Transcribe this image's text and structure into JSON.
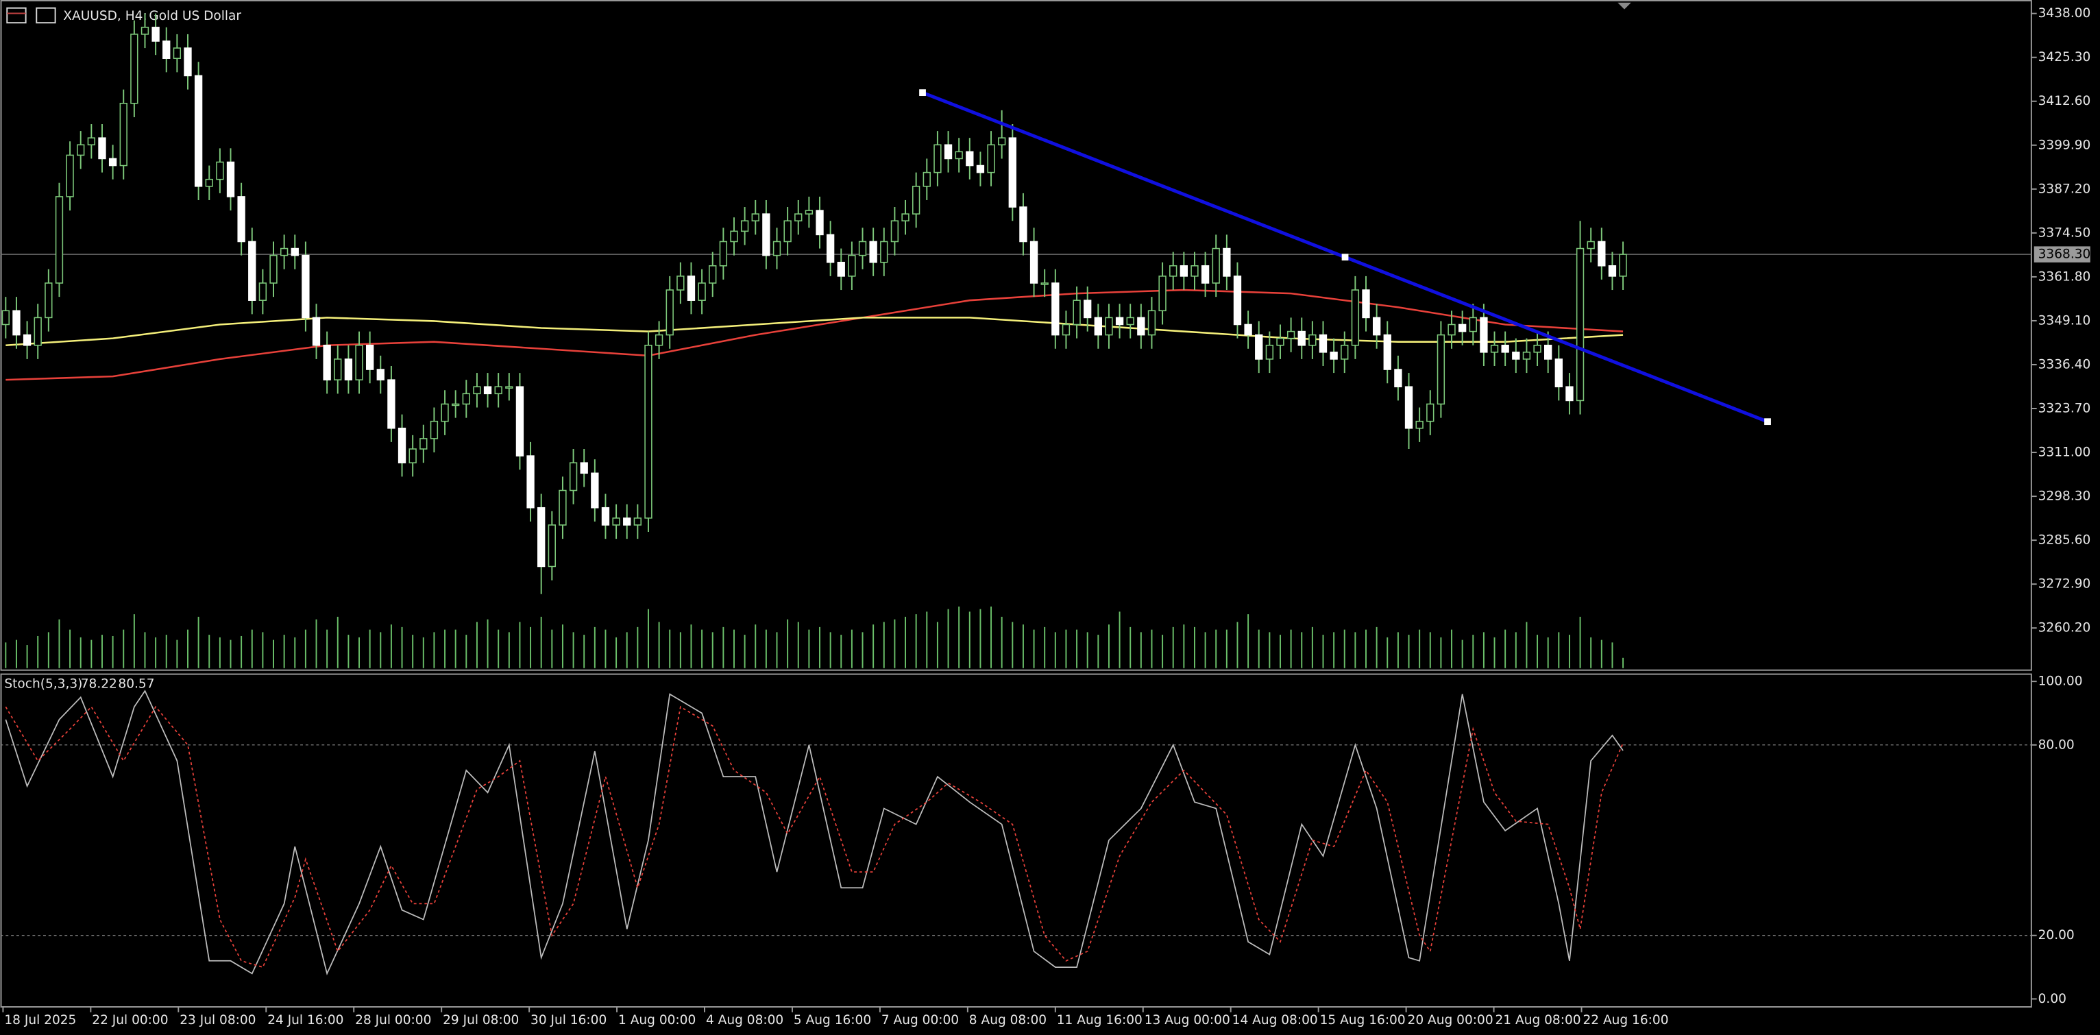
{
  "chart_data": {
    "type": "candlestick",
    "symbol": "XAUUSD, H4:",
    "title": "Gold US Dollar",
    "bull_color": "#000000",
    "bear_color": "#ffffff",
    "wick_color": "#7dc87a",
    "volume_color": "#6abf69",
    "ylim": [
      3248.2,
      3441.9
    ],
    "yticks": [
      {
        "value": 3438.0,
        "label": "3438.00"
      },
      {
        "value": 3425.3,
        "label": "3425.30"
      },
      {
        "value": 3412.6,
        "label": "3412.60"
      },
      {
        "value": 3399.9,
        "label": "3399.90"
      },
      {
        "value": 3387.2,
        "label": "3387.20"
      },
      {
        "value": 3374.5,
        "label": "3374.50"
      },
      {
        "value": 3361.8,
        "label": "3361.80"
      },
      {
        "value": 3349.1,
        "label": "3349.10"
      },
      {
        "value": 3336.4,
        "label": "3336.40"
      },
      {
        "value": 3323.7,
        "label": "3323.70"
      },
      {
        "value": 3311.0,
        "label": "3311.00"
      },
      {
        "value": 3298.3,
        "label": "3298.30"
      },
      {
        "value": 3285.6,
        "label": "3285.60"
      },
      {
        "value": 3272.9,
        "label": "3272.90"
      },
      {
        "value": 3260.2,
        "label": "3260.20"
      }
    ],
    "last_price_label": "3368.30",
    "x_labels": [
      "18 Jul 2025",
      "22 Jul 00:00",
      "23 Jul 08:00",
      "24 Jul 16:00",
      "28 Jul 00:00",
      "29 Jul 08:00",
      "30 Jul 16:00",
      "1 Aug 00:00",
      "4 Aug 08:00",
      "5 Aug 16:00",
      "7 Aug 00:00",
      "8 Aug 08:00",
      "11 Aug 16:00",
      "13 Aug 00:00",
      "14 Aug 08:00",
      "15 Aug 16:00",
      "20 Aug 00:00",
      "21 Aug 08:00",
      "22 Aug 16:00"
    ],
    "candles": {
      "open": [
        3348,
        3352,
        3345,
        3342,
        3350,
        3360,
        3385,
        3397,
        3400,
        3402,
        3396,
        3394,
        3412,
        3432,
        3434,
        3430,
        3425,
        3428,
        3420,
        3388,
        3390,
        3395,
        3385,
        3372,
        3355,
        3360,
        3368,
        3370,
        3368,
        3350,
        3342,
        3332,
        3338,
        3332,
        3342,
        3335,
        3332,
        3318,
        3308,
        3312,
        3315,
        3320,
        3325,
        3325,
        3328,
        3330,
        3328,
        3330,
        3330,
        3310,
        3295,
        3278,
        3290,
        3300,
        3308,
        3305,
        3295,
        3290,
        3292,
        3290,
        3292,
        3342,
        3345,
        3358,
        3362,
        3355,
        3360,
        3365,
        3372,
        3375,
        3378,
        3380,
        3368,
        3372,
        3378,
        3380,
        3381,
        3374,
        3366,
        3362,
        3368,
        3372,
        3366,
        3372,
        3378,
        3380,
        3388,
        3392,
        3400,
        3396,
        3398,
        3394,
        3392,
        3400,
        3402,
        3382,
        3372,
        3360,
        3360,
        3345,
        3348,
        3355,
        3350,
        3345,
        3350,
        3348,
        3350,
        3345,
        3352,
        3362,
        3365,
        3362,
        3365,
        3360,
        3370,
        3362,
        3348,
        3345,
        3338,
        3342,
        3344,
        3346,
        3342,
        3345,
        3340,
        3338,
        3342,
        3358,
        3350,
        3345,
        3335,
        3330,
        3318,
        3320,
        3325,
        3345,
        3348,
        3346,
        3350,
        3340,
        3342,
        3340,
        3338,
        3340,
        3342,
        3338,
        3330,
        3326,
        3370,
        3372,
        3365,
        3362
      ],
      "high": [
        3356,
        3356,
        3349,
        3354,
        3364,
        3389,
        3401,
        3404,
        3406,
        3406,
        3400,
        3416,
        3436,
        3438,
        3438,
        3434,
        3432,
        3432,
        3424,
        3394,
        3399,
        3399,
        3389,
        3376,
        3364,
        3372,
        3374,
        3374,
        3372,
        3354,
        3346,
        3342,
        3342,
        3346,
        3346,
        3339,
        3336,
        3322,
        3316,
        3319,
        3324,
        3329,
        3329,
        3332,
        3334,
        3334,
        3334,
        3334,
        3334,
        3314,
        3299,
        3294,
        3304,
        3312,
        3312,
        3309,
        3299,
        3296,
        3296,
        3296,
        3346,
        3349,
        3362,
        3366,
        3366,
        3364,
        3369,
        3376,
        3379,
        3382,
        3384,
        3384,
        3376,
        3382,
        3384,
        3385,
        3385,
        3378,
        3370,
        3372,
        3376,
        3376,
        3376,
        3382,
        3384,
        3392,
        3396,
        3404,
        3404,
        3402,
        3402,
        3398,
        3404,
        3410,
        3406,
        3386,
        3376,
        3364,
        3364,
        3352,
        3359,
        3359,
        3354,
        3354,
        3354,
        3354,
        3354,
        3356,
        3366,
        3369,
        3369,
        3369,
        3369,
        3374,
        3374,
        3366,
        3352,
        3349,
        3346,
        3348,
        3350,
        3350,
        3349,
        3349,
        3344,
        3346,
        3362,
        3362,
        3354,
        3349,
        3339,
        3334,
        3324,
        3329,
        3349,
        3352,
        3352,
        3354,
        3354,
        3346,
        3346,
        3344,
        3344,
        3346,
        3346,
        3342,
        3334,
        3378,
        3376,
        3376,
        3369,
        3372
      ],
      "low": [
        3344,
        3341,
        3338,
        3338,
        3346,
        3356,
        3381,
        3393,
        3396,
        3392,
        3390,
        3390,
        3408,
        3428,
        3426,
        3421,
        3421,
        3416,
        3384,
        3384,
        3386,
        3381,
        3368,
        3351,
        3351,
        3356,
        3364,
        3364,
        3346,
        3338,
        3328,
        3328,
        3328,
        3328,
        3331,
        3328,
        3314,
        3304,
        3304,
        3308,
        3311,
        3316,
        3321,
        3321,
        3324,
        3324,
        3324,
        3326,
        3306,
        3291,
        3270,
        3274,
        3286,
        3296,
        3301,
        3291,
        3286,
        3286,
        3286,
        3286,
        3288,
        3338,
        3341,
        3354,
        3351,
        3351,
        3356,
        3361,
        3368,
        3371,
        3374,
        3364,
        3364,
        3368,
        3374,
        3376,
        3370,
        3362,
        3358,
        3358,
        3364,
        3362,
        3362,
        3368,
        3374,
        3376,
        3384,
        3388,
        3392,
        3392,
        3390,
        3388,
        3388,
        3396,
        3378,
        3368,
        3356,
        3356,
        3341,
        3341,
        3344,
        3346,
        3341,
        3341,
        3344,
        3344,
        3341,
        3341,
        3348,
        3358,
        3358,
        3358,
        3356,
        3356,
        3358,
        3344,
        3341,
        3334,
        3334,
        3338,
        3340,
        3338,
        3338,
        3336,
        3334,
        3334,
        3338,
        3346,
        3341,
        3331,
        3326,
        3312,
        3314,
        3316,
        3321,
        3341,
        3342,
        3342,
        3336,
        3336,
        3336,
        3334,
        3334,
        3336,
        3334,
        3326,
        3322,
        3322,
        3366,
        3361,
        3358,
        3358
      ],
      "close": [
        3352,
        3345,
        3342,
        3350,
        3360,
        3385,
        3397,
        3400,
        3402,
        3396,
        3394,
        3412,
        3432,
        3434,
        3430,
        3425,
        3428,
        3420,
        3388,
        3390,
        3395,
        3385,
        3372,
        3355,
        3360,
        3368,
        3370,
        3368,
        3350,
        3342,
        3332,
        3338,
        3332,
        3342,
        3335,
        3332,
        3318,
        3308,
        3312,
        3315,
        3320,
        3325,
        3325,
        3328,
        3330,
        3328,
        3330,
        3330,
        3310,
        3295,
        3278,
        3290,
        3300,
        3308,
        3305,
        3295,
        3290,
        3292,
        3290,
        3292,
        3342,
        3345,
        3358,
        3362,
        3355,
        3360,
        3365,
        3372,
        3375,
        3378,
        3380,
        3368,
        3372,
        3378,
        3380,
        3381,
        3374,
        3366,
        3362,
        3368,
        3372,
        3366,
        3372,
        3378,
        3380,
        3388,
        3392,
        3400,
        3396,
        3398,
        3394,
        3392,
        3400,
        3402,
        3382,
        3372,
        3360,
        3360,
        3345,
        3348,
        3355,
        3350,
        3345,
        3350,
        3348,
        3350,
        3345,
        3352,
        3362,
        3365,
        3362,
        3365,
        3360,
        3370,
        3362,
        3348,
        3345,
        3338,
        3342,
        3344,
        3346,
        3342,
        3345,
        3340,
        3338,
        3342,
        3358,
        3350,
        3345,
        3335,
        3330,
        3318,
        3320,
        3325,
        3345,
        3348,
        3346,
        3350,
        3340,
        3342,
        3340,
        3338,
        3340,
        3342,
        3338,
        3330,
        3326,
        3370,
        3372,
        3365,
        3362,
        3368.3
      ]
    },
    "volume": [
      20,
      22,
      18,
      25,
      28,
      38,
      30,
      24,
      22,
      26,
      25,
      30,
      42,
      28,
      24,
      26,
      22,
      30,
      40,
      26,
      24,
      22,
      25,
      30,
      28,
      22,
      26,
      24,
      30,
      38,
      30,
      40,
      26,
      24,
      30,
      28,
      34,
      32,
      26,
      24,
      28,
      30,
      30,
      26,
      36,
      38,
      30,
      28,
      36,
      32,
      40,
      30,
      34,
      28,
      26,
      32,
      30,
      24,
      28,
      32,
      46,
      36,
      30,
      28,
      34,
      30,
      28,
      32,
      30,
      26,
      34,
      30,
      28,
      38,
      36,
      30,
      32,
      28,
      26,
      30,
      28,
      34,
      36,
      38,
      40,
      42,
      44,
      36,
      46,
      48,
      44,
      46,
      48,
      40,
      36,
      34,
      30,
      32,
      28,
      30,
      30,
      28,
      26,
      34,
      44,
      32,
      28,
      30,
      26,
      32,
      34,
      32,
      28,
      30,
      30,
      36,
      42,
      30,
      28,
      26,
      30,
      28,
      32,
      26,
      28,
      30,
      28,
      30,
      32,
      24,
      28,
      26,
      30,
      28,
      24,
      30,
      22,
      26,
      28,
      24,
      30,
      28,
      36,
      26,
      24,
      28,
      26,
      40,
      24,
      22,
      20,
      8
    ],
    "ma": [
      {
        "color": "#e8413a",
        "x": [
          0,
          10,
          20,
          30,
          40,
          50,
          60,
          70,
          80,
          90,
          100,
          110,
          120,
          130,
          140,
          151
        ],
        "values": [
          3332,
          3333,
          3338,
          3342,
          3343,
          3341,
          3339,
          3345,
          3350,
          3355,
          3357,
          3358,
          3357,
          3353,
          3348,
          3346
        ]
      },
      {
        "color": "#f4ef7a",
        "x": [
          0,
          10,
          20,
          30,
          40,
          50,
          60,
          70,
          80,
          90,
          100,
          110,
          120,
          130,
          140,
          151
        ],
        "values": [
          3342,
          3344,
          3348,
          3350,
          3349,
          3347,
          3346,
          3348,
          3350,
          3350,
          3348,
          3346,
          3344,
          3343,
          3343,
          3345
        ]
      }
    ],
    "trendline": {
      "color": "#1010e0",
      "x": [
        85.6,
        164.5
      ],
      "y": [
        3415.1,
        3319.9
      ]
    },
    "indicator": {
      "type": "line",
      "title": "Stoch(5,3,3)",
      "ylim": [
        -2.5,
        102.5
      ],
      "yticks": [
        {
          "value": 100,
          "label": "100.00"
        },
        {
          "value": 80,
          "label": "80.00"
        },
        {
          "value": 20,
          "label": "20.00"
        },
        {
          "value": 0,
          "label": "0.00"
        }
      ],
      "series": [
        {
          "color": "#bdbdbd",
          "dash": "none",
          "x": [
            0,
            2,
            5,
            7,
            10,
            12,
            13,
            16,
            19,
            21,
            23,
            26,
            27,
            30,
            33,
            35,
            37,
            39,
            43,
            45,
            47,
            50,
            52,
            55,
            58,
            60,
            62,
            65,
            67,
            70,
            72,
            75,
            78,
            80,
            82,
            85,
            87,
            90,
            93,
            96,
            98,
            100,
            103,
            106,
            109,
            111,
            113,
            116,
            118,
            121,
            123,
            126,
            128,
            131,
            132,
            136,
            138,
            140,
            143,
            145,
            146,
            148,
            150,
            151
          ],
          "values": [
            88,
            67,
            88,
            95,
            70,
            92,
            97,
            75,
            12,
            12,
            8,
            30,
            48,
            8,
            30,
            48,
            28,
            25,
            72,
            65,
            80,
            13,
            30,
            78,
            22,
            50,
            96,
            90,
            70,
            70,
            40,
            80,
            35,
            35,
            60,
            55,
            70,
            62,
            55,
            15,
            10,
            10,
            50,
            60,
            80,
            62,
            60,
            18,
            14,
            55,
            45,
            80,
            60,
            13,
            12,
            96,
            62,
            53,
            60,
            30,
            12,
            75,
            83,
            78.22
          ]
        },
        {
          "color": "#e8413a",
          "dash": "2,2",
          "x": [
            0,
            3,
            6,
            8,
            11,
            14,
            17,
            20,
            22,
            24,
            27,
            28,
            31,
            34,
            36,
            38,
            40,
            44,
            46,
            48,
            51,
            53,
            56,
            59,
            61,
            63,
            66,
            68,
            71,
            73,
            76,
            79,
            81,
            83,
            86,
            88,
            91,
            94,
            97,
            99,
            101,
            104,
            107,
            110,
            112,
            114,
            117,
            119,
            122,
            124,
            127,
            129,
            132,
            133,
            137,
            139,
            141,
            144,
            146,
            147,
            149,
            151
          ],
          "values": [
            92,
            75,
            85,
            92,
            75,
            92,
            80,
            25,
            12,
            10,
            32,
            44,
            15,
            28,
            42,
            30,
            30,
            66,
            70,
            75,
            20,
            30,
            70,
            35,
            55,
            92,
            86,
            72,
            65,
            52,
            70,
            40,
            40,
            55,
            62,
            68,
            62,
            55,
            20,
            12,
            15,
            45,
            62,
            72,
            65,
            58,
            25,
            18,
            50,
            48,
            72,
            62,
            20,
            15,
            85,
            65,
            56,
            55,
            35,
            22,
            65,
            80.57
          ]
        }
      ]
    }
  }
}
